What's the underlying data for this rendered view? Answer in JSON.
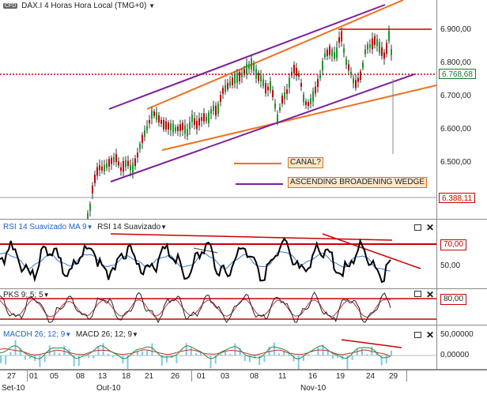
{
  "main": {
    "symbol_badge": "CFD",
    "title": "DAX.I 4 Horas Hora Local (TMG+0)",
    "price_ticks": [
      "6.900,00",
      "6.800,00",
      "6.700,00",
      "6.600,00",
      "6.500,00"
    ],
    "current_price": "6.768,68",
    "low_mark": "6.388,11",
    "annotation_channel": "CANAL?",
    "annotation_wedge": "ASCENDING BROADENING WEDGE"
  },
  "rsi": {
    "label_a": "RSI 14 Suavizado MA 9",
    "label_b": "RSI 14 Suavizado",
    "ticks": [
      "70,00",
      "50,00"
    ]
  },
  "pks": {
    "label": "PKS 9; 5; 5",
    "ticks": [
      "80,00"
    ]
  },
  "macd": {
    "label_a": "MACDH 26; 12; 9",
    "label_b": "MACD 26; 12; 9",
    "ticks": [
      "50,00000",
      "0,00000"
    ]
  },
  "xaxis": {
    "days": [
      "27",
      "01",
      "05",
      "08",
      "13",
      "18",
      "21",
      "26",
      "01",
      "03",
      "08",
      "11",
      "16",
      "19",
      "24",
      "29"
    ],
    "months": [
      "Set-10",
      "Out-10",
      "Nov-10"
    ]
  },
  "colors": {
    "up": "#1a9a2a",
    "down": "#c00000",
    "channel": "#f07020",
    "wedge": "#7a1fa0",
    "rsi_ma": "#3a7ad8",
    "signal": "#c83030"
  }
}
